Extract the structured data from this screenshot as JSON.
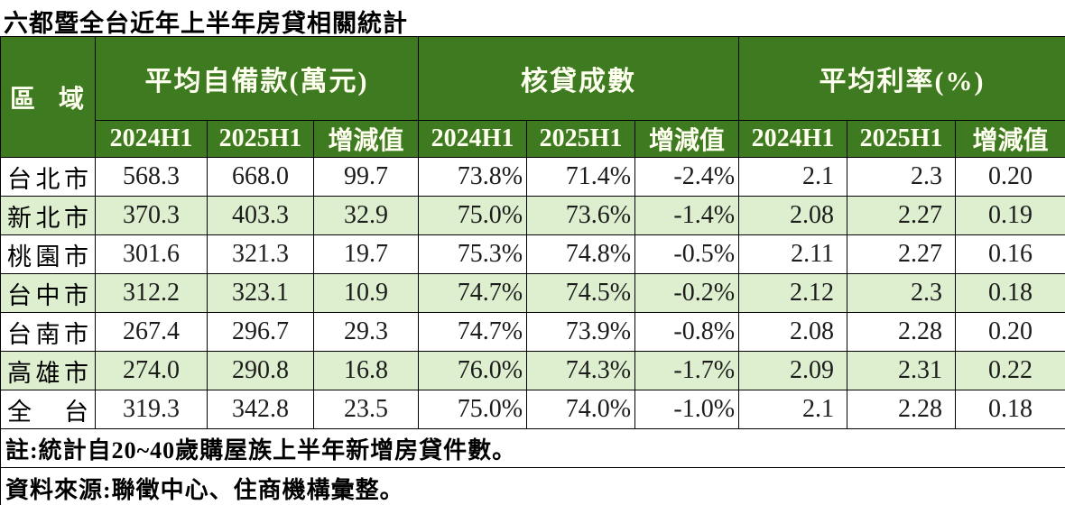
{
  "title": "六都暨全台近年上半年房貸相關統計",
  "colors": {
    "header_green": "#3e7a1f",
    "stripe_green": "#ddefcf",
    "header_text": "#fffff0",
    "border": "#000000"
  },
  "table": {
    "region_header": "區域",
    "groups": [
      {
        "label": "平均自備款(萬元)"
      },
      {
        "label": "核貸成數"
      },
      {
        "label": "平均利率(%)"
      }
    ],
    "sub_headers": [
      "2024H1",
      "2025H1",
      "增減值"
    ],
    "rows": [
      {
        "region": "台北市",
        "down": [
          "568.3",
          "668.0",
          "99.7"
        ],
        "ratio": [
          "73.8%",
          "71.4%",
          "-2.4%"
        ],
        "rate": [
          "2.1",
          "2.3",
          "0.20"
        ]
      },
      {
        "region": "新北市",
        "down": [
          "370.3",
          "403.3",
          "32.9"
        ],
        "ratio": [
          "75.0%",
          "73.6%",
          "-1.4%"
        ],
        "rate": [
          "2.08",
          "2.27",
          "0.19"
        ]
      },
      {
        "region": "桃園市",
        "down": [
          "301.6",
          "321.3",
          "19.7"
        ],
        "ratio": [
          "75.3%",
          "74.8%",
          "-0.5%"
        ],
        "rate": [
          "2.11",
          "2.27",
          "0.16"
        ]
      },
      {
        "region": "台中市",
        "down": [
          "312.2",
          "323.1",
          "10.9"
        ],
        "ratio": [
          "74.7%",
          "74.5%",
          "-0.2%"
        ],
        "rate": [
          "2.12",
          "2.3",
          "0.18"
        ]
      },
      {
        "region": "台南市",
        "down": [
          "267.4",
          "296.7",
          "29.3"
        ],
        "ratio": [
          "74.7%",
          "73.9%",
          "-0.8%"
        ],
        "rate": [
          "2.08",
          "2.28",
          "0.20"
        ]
      },
      {
        "region": "高雄市",
        "down": [
          "274.0",
          "290.8",
          "16.8"
        ],
        "ratio": [
          "76.0%",
          "74.3%",
          "-1.7%"
        ],
        "rate": [
          "2.09",
          "2.31",
          "0.22"
        ]
      },
      {
        "region": "全台",
        "down": [
          "319.3",
          "342.8",
          "23.5"
        ],
        "ratio": [
          "75.0%",
          "74.0%",
          "-1.0%"
        ],
        "rate": [
          "2.1",
          "2.28",
          "0.18"
        ]
      }
    ]
  },
  "notes": [
    "註:統計自20~40歲購屋族上半年新增房貸件數。",
    "資料來源:聯徵中心、住商機構彙整。"
  ],
  "chart_data": {
    "type": "table",
    "title": "六都暨全台近年上半年房貸相關統計",
    "column_groups": [
      "平均自備款(萬元)",
      "核貸成數",
      "平均利率(%)"
    ],
    "columns": [
      "區域",
      "自備款2024H1",
      "自備款2025H1",
      "自備款增減值",
      "核貸成數2024H1",
      "核貸成數2025H1",
      "核貸成數增減值",
      "利率2024H1",
      "利率2025H1",
      "利率增減值"
    ],
    "rows": [
      [
        "台北市",
        568.3,
        668.0,
        99.7,
        "73.8%",
        "71.4%",
        "-2.4%",
        2.1,
        2.3,
        0.2
      ],
      [
        "新北市",
        370.3,
        403.3,
        32.9,
        "75.0%",
        "73.6%",
        "-1.4%",
        2.08,
        2.27,
        0.19
      ],
      [
        "桃園市",
        301.6,
        321.3,
        19.7,
        "75.3%",
        "74.8%",
        "-0.5%",
        2.11,
        2.27,
        0.16
      ],
      [
        "台中市",
        312.2,
        323.1,
        10.9,
        "74.7%",
        "74.5%",
        "-0.2%",
        2.12,
        2.3,
        0.18
      ],
      [
        "台南市",
        267.4,
        296.7,
        29.3,
        "74.7%",
        "73.9%",
        "-0.8%",
        2.08,
        2.28,
        0.2
      ],
      [
        "高雄市",
        274.0,
        290.8,
        16.8,
        "76.0%",
        "74.3%",
        "-1.7%",
        2.09,
        2.31,
        0.22
      ],
      [
        "全台",
        319.3,
        342.8,
        23.5,
        "75.0%",
        "74.0%",
        "-1.0%",
        2.1,
        2.28,
        0.18
      ]
    ],
    "footnotes": [
      "註:統計自20~40歲購屋族上半年新增房貸件數。",
      "資料來源:聯徵中心、住商機構彙整。"
    ]
  }
}
